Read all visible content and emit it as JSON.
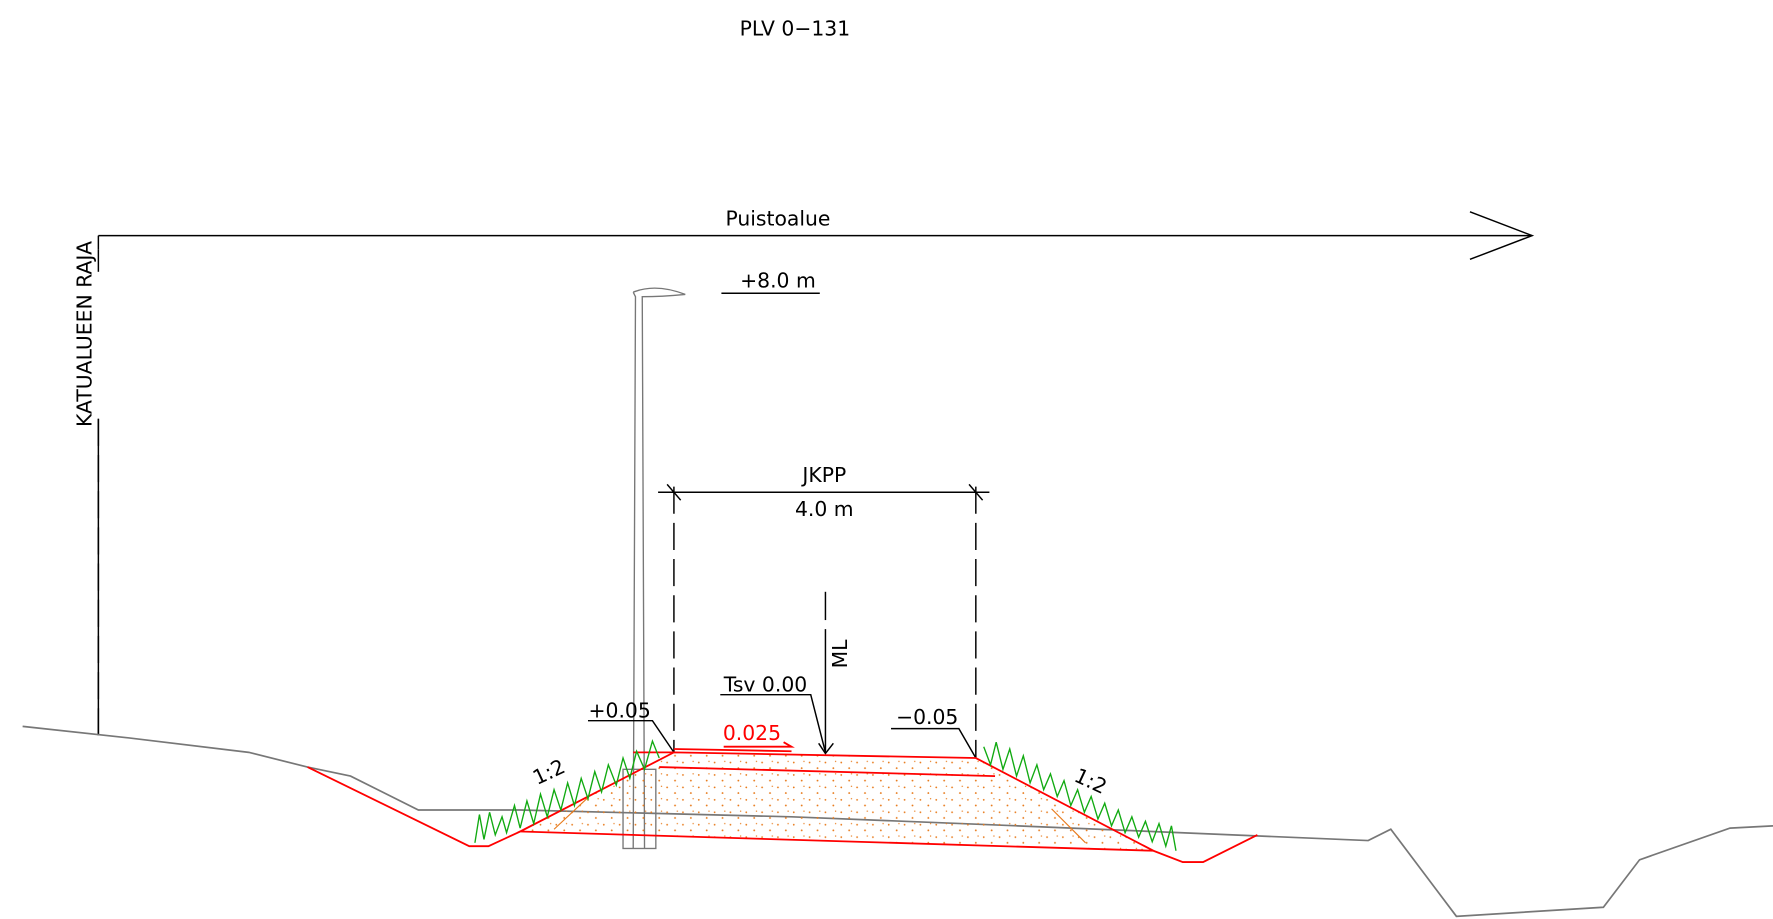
{
  "title": "PLV 0−131",
  "labels": {
    "area": "Puistoalue",
    "boundary": "KATUALUEEN RAJA",
    "lamp_height": "+8.0  m",
    "path_name": "JKPP",
    "path_width": "4.0  m",
    "centerline": "ML",
    "top_level": "Tsv  0.00",
    "left_level": "+0.05",
    "right_level": "−0.05",
    "cross_slope": "0.025",
    "left_slope": "1:2",
    "right_slope": "1:2"
  }
}
